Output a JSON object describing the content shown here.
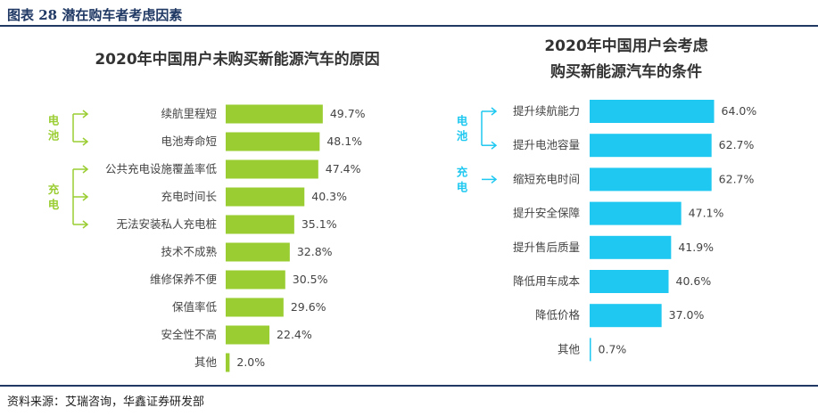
{
  "figure": {
    "title": "图表 28 潜在购车者考虑因素",
    "source": "资料来源：艾瑞咨询，华鑫证券研发部"
  },
  "colors": {
    "left_bar": "#9acd32",
    "right_bar": "#1fc8f0",
    "rule": "#1f3864"
  },
  "chart_data": [
    {
      "type": "bar",
      "orientation": "horizontal",
      "title": "2020年中国用户未购买新能源汽车的原因",
      "categories": [
        "续航里程短",
        "电池寿命短",
        "公共充电设施覆盖率低",
        "充电时间长",
        "无法安装私人充电桩",
        "技术不成熟",
        "维修保养不便",
        "保值率低",
        "安全性不高",
        "其他"
      ],
      "values": [
        49.7,
        48.1,
        47.4,
        40.3,
        35.1,
        32.8,
        30.5,
        29.6,
        22.4,
        2.0
      ],
      "labels": [
        "49.7%",
        "48.1%",
        "47.4%",
        "40.3%",
        "35.1%",
        "32.8%",
        "30.5%",
        "29.6%",
        "22.4%",
        "2.0%"
      ],
      "groups": [
        {
          "name": "电池",
          "indices": [
            0,
            1
          ]
        },
        {
          "name": "充电",
          "indices": [
            2,
            3,
            4
          ]
        }
      ]
    },
    {
      "type": "bar",
      "orientation": "horizontal",
      "title_lines": [
        "2020年中国用户会考虑",
        "购买新能源汽车的条件"
      ],
      "categories": [
        "提升续航能力",
        "提升电池容量",
        "缩短充电时间",
        "提升安全保障",
        "提升售后质量",
        "降低用车成本",
        "降低价格",
        "其他"
      ],
      "values": [
        64.0,
        62.7,
        62.7,
        47.1,
        41.9,
        40.6,
        37.0,
        0.7
      ],
      "labels": [
        "64.0%",
        "62.7%",
        "62.7%",
        "47.1%",
        "41.9%",
        "40.6%",
        "37.0%",
        "0.7%"
      ],
      "groups": [
        {
          "name": "电池",
          "indices": [
            0,
            1
          ]
        },
        {
          "name": "充电",
          "indices": [
            2
          ]
        }
      ]
    }
  ]
}
